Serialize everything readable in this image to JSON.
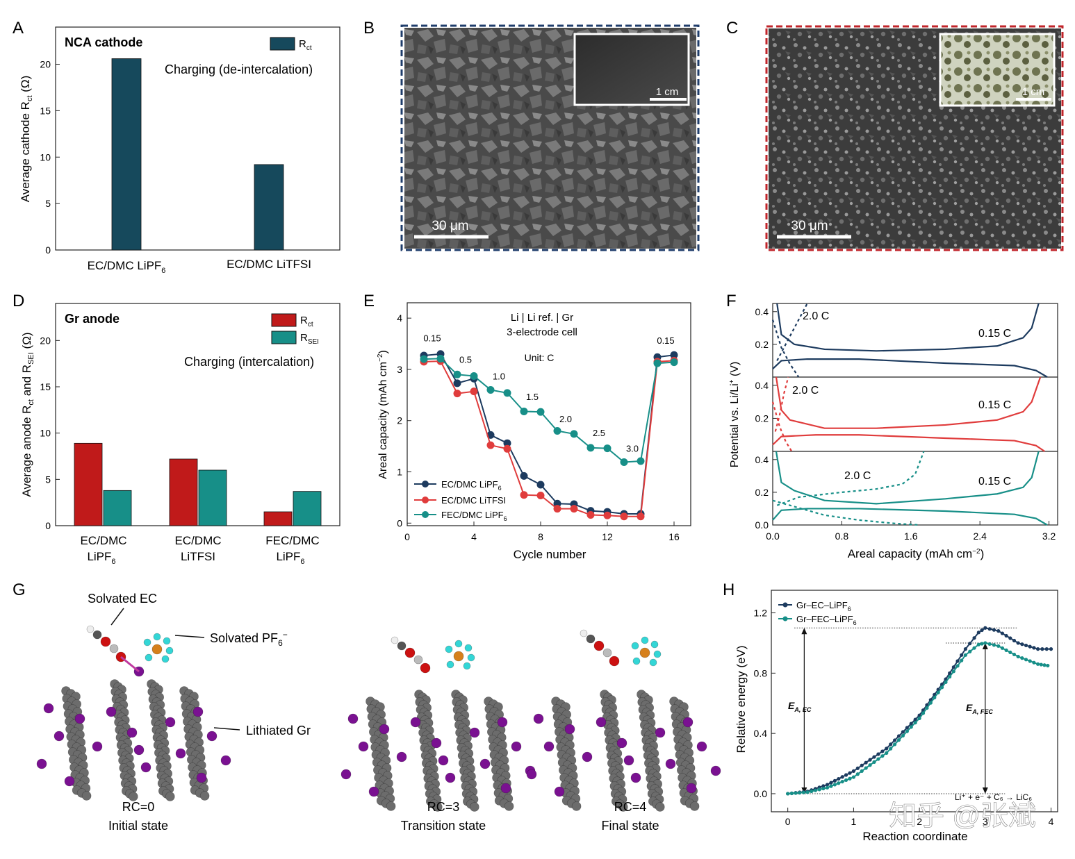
{
  "panel_letters": [
    "A",
    "B",
    "C",
    "D",
    "E",
    "F",
    "G",
    "H"
  ],
  "colors": {
    "navy": "#1d3b5f",
    "teal": "#178f88",
    "red": "#e03c3c",
    "darkteal": "#16495c",
    "darkred": "#c01a1a",
    "frame_b": "#1f3d6b",
    "frame_c": "#c0242a",
    "li": "#7a1191",
    "carbon": "#6c6c6c",
    "oxygen": "#cc1111",
    "fluorine": "#33d6d6",
    "phosphorus": "#d6801c"
  },
  "panelA": {
    "title": "NCA cathode",
    "legend": "R",
    "legend_sub": "ct",
    "note": "Charging (de-intercalation)",
    "ylabel_main": "Average cathode R",
    "ylabel_sub": "ct",
    "ylabel_unit": " (Ω)",
    "cat1_main": "EC/DMC LiPF",
    "cat1_sub": "6",
    "cat2": "EC/DMC LiTFSI"
  },
  "panelB": {
    "scale": "30 μm",
    "inset_scale": "1 cm"
  },
  "panelC": {
    "scale": "30 μm",
    "inset_scale": "1 cm"
  },
  "panelD": {
    "title": "Gr anode",
    "leg1": "R",
    "leg1_sub": "ct",
    "leg2": "R",
    "leg2_sub": "SEI",
    "note": "Charging (intercalation)",
    "ylabel_a": "Average anode R",
    "ylabel_a_sub": "ct",
    "ylabel_b": " and R",
    "ylabel_b_sub": "SEI",
    "ylabel_unit": " (Ω)",
    "cat_line1": [
      "EC/DMC",
      "EC/DMC",
      "FEC/DMC"
    ],
    "cat_line2_main": [
      "LiPF",
      "LiTFSI",
      "LiPF"
    ],
    "cat_line2_sub": [
      "6",
      "",
      "6"
    ]
  },
  "panelE": {
    "title1": "Li | Li ref. | Gr",
    "title2": "3-electrode cell",
    "unit": "Unit: C",
    "ylabel": "Areal capacity (mAh cm",
    "ylabel_sup": "−2",
    "ylabel_end": ")",
    "xlabel": "Cycle number",
    "rates": [
      "0.15",
      "0.5",
      "1.0",
      "1.5",
      "2.0",
      "2.5",
      "3.0",
      "0.15"
    ],
    "leg1_main": "EC/DMC LiPF",
    "leg1_sub": "6",
    "leg2": "EC/DMC LiTFSI",
    "leg3_main": "FEC/DMC LiPF",
    "leg3_sub": "6"
  },
  "panelF": {
    "ylabel": "Potential vs. Li/Li",
    "ylabel_sup": "+",
    "ylabel_end": " (V)",
    "xlabel": "Areal capacity (mAh cm",
    "xlabel_sup": "−2",
    "xlabel_end": ")",
    "fast": "2.0 C",
    "slow": "0.15 C"
  },
  "panelG": {
    "solv_ec": "Solvated EC",
    "solv_pf6": "Solvated PF",
    "solv_pf6_sub": "6",
    "solv_pf6_sup": "−",
    "lith_gr": "Lithiated Gr",
    "states": [
      {
        "rc": "RC=0",
        "name": "Initial state"
      },
      {
        "rc": "RC=3",
        "name": "Transition state"
      },
      {
        "rc": "RC=4",
        "name": "Final state"
      }
    ]
  },
  "panelH": {
    "leg1_main": "Gr–EC–LiPF",
    "leg1_sub": "6",
    "leg2_main": "Gr–FEC–LiPF",
    "leg2_sub": "6",
    "ylabel": "Relative energy (eV)",
    "xlabel": "Reaction coordinate",
    "ea_ec": "E",
    "ea_ec_sub": "A, EC",
    "ea_fec": "E",
    "ea_fec_sub": "A, FEC",
    "reaction": "Li⁺ + e⁻ + C₆ → LiC₆"
  },
  "watermark": "知乎 @张斌",
  "chart_data": [
    {
      "type": "bar",
      "panel": "A",
      "categories": [
        "EC/DMC LiPF6",
        "EC/DMC LiTFSI"
      ],
      "series": [
        {
          "name": "Rct",
          "values": [
            20.6,
            9.2
          ]
        }
      ],
      "ylabel": "Average cathode Rct (Ω)",
      "ylim": [
        0,
        24
      ],
      "yticks": [
        0,
        5,
        10,
        15,
        20
      ]
    },
    {
      "type": "bar",
      "panel": "D",
      "categories": [
        "EC/DMC LiPF6",
        "EC/DMC LiTFSI",
        "FEC/DMC LiPF6"
      ],
      "series": [
        {
          "name": "Rct",
          "values": [
            8.9,
            7.2,
            1.5
          ]
        },
        {
          "name": "RSEI",
          "values": [
            3.8,
            6.0,
            3.7
          ]
        }
      ],
      "ylabel": "Average anode Rct and RSEI (Ω)",
      "ylim": [
        0,
        24
      ],
      "yticks": [
        0,
        5,
        10,
        15,
        20
      ]
    },
    {
      "type": "line",
      "panel": "E",
      "x": [
        1,
        2,
        3,
        4,
        5,
        6,
        7,
        8,
        9,
        10,
        11,
        12,
        13,
        14,
        15,
        16
      ],
      "series": [
        {
          "name": "EC/DMC LiPF6",
          "values": [
            3.27,
            3.3,
            2.73,
            2.82,
            1.72,
            1.56,
            0.92,
            0.75,
            0.38,
            0.37,
            0.24,
            0.22,
            0.18,
            0.18,
            3.24,
            3.28
          ]
        },
        {
          "name": "EC/DMC LiTFSI",
          "values": [
            3.15,
            3.16,
            2.53,
            2.57,
            1.52,
            1.45,
            0.55,
            0.54,
            0.28,
            0.28,
            0.16,
            0.15,
            0.13,
            0.13,
            3.15,
            3.17
          ]
        },
        {
          "name": "FEC/DMC LiPF6",
          "values": [
            3.2,
            3.21,
            2.9,
            2.87,
            2.6,
            2.54,
            2.18,
            2.17,
            1.8,
            1.74,
            1.47,
            1.46,
            1.19,
            1.21,
            3.12,
            3.14
          ]
        }
      ],
      "xlabel": "Cycle number",
      "ylabel": "Areal capacity (mAh cm−2)",
      "xlim": [
        0,
        17
      ],
      "ylim": [
        -0.05,
        4.3
      ],
      "xticks": [
        0,
        4,
        8,
        12,
        16
      ],
      "yticks": [
        0,
        1,
        2,
        3,
        4
      ]
    },
    {
      "type": "line",
      "panel": "F",
      "xlabel": "Areal capacity (mAh cm−2)",
      "ylabel": "Potential vs. Li/Li+ (V)",
      "xlim": [
        0,
        3.3
      ],
      "ylim": [
        0,
        0.45
      ],
      "xticks": [
        0.0,
        0.8,
        1.6,
        2.4,
        3.2
      ],
      "yticks": [
        0.0,
        0.2,
        0.4
      ],
      "rows": [
        {
          "name": "EC/DMC LiPF6",
          "color": "navy",
          "slow_charge": [
            [
              0.05,
              0.45
            ],
            [
              0.1,
              0.26
            ],
            [
              0.25,
              0.2
            ],
            [
              0.6,
              0.17
            ],
            [
              1.2,
              0.16
            ],
            [
              2.0,
              0.17
            ],
            [
              2.6,
              0.19
            ],
            [
              2.9,
              0.24
            ],
            [
              3.0,
              0.3
            ],
            [
              3.08,
              0.45
            ]
          ],
          "slow_discharge": [
            [
              0.0,
              0.05
            ],
            [
              0.1,
              0.1
            ],
            [
              0.4,
              0.11
            ],
            [
              1.0,
              0.11
            ],
            [
              2.0,
              0.085
            ],
            [
              2.8,
              0.07
            ],
            [
              3.05,
              0.04
            ],
            [
              3.18,
              0.0
            ]
          ],
          "fast_charge": [
            [
              0.05,
              0.1
            ],
            [
              0.15,
              0.2
            ],
            [
              0.3,
              0.35
            ],
            [
              0.4,
              0.45
            ]
          ],
          "fast_discharge": [
            [
              0.0,
              0.35
            ],
            [
              0.1,
              0.18
            ],
            [
              0.2,
              0.08
            ],
            [
              0.3,
              0.0
            ]
          ]
        },
        {
          "name": "EC/DMC LiTFSI",
          "color": "red",
          "slow_charge": [
            [
              0.04,
              0.45
            ],
            [
              0.1,
              0.25
            ],
            [
              0.2,
              0.19
            ],
            [
              0.6,
              0.14
            ],
            [
              1.2,
              0.14
            ],
            [
              2.0,
              0.16
            ],
            [
              2.6,
              0.19
            ],
            [
              2.9,
              0.24
            ],
            [
              3.0,
              0.3
            ],
            [
              3.1,
              0.45
            ]
          ],
          "slow_discharge": [
            [
              0.0,
              0.04
            ],
            [
              0.1,
              0.09
            ],
            [
              0.5,
              0.1
            ],
            [
              1.0,
              0.1
            ],
            [
              2.0,
              0.08
            ],
            [
              2.8,
              0.065
            ],
            [
              3.05,
              0.035
            ],
            [
              3.15,
              0.0
            ]
          ],
          "fast_charge": [
            [
              0.03,
              0.12
            ],
            [
              0.08,
              0.22
            ],
            [
              0.13,
              0.35
            ],
            [
              0.18,
              0.45
            ]
          ],
          "fast_discharge": [
            [
              0.0,
              0.3
            ],
            [
              0.08,
              0.15
            ],
            [
              0.15,
              0.06
            ],
            [
              0.22,
              0.0
            ]
          ]
        },
        {
          "name": "FEC/DMC LiPF6",
          "color": "teal",
          "slow_charge": [
            [
              0.04,
              0.45
            ],
            [
              0.1,
              0.26
            ],
            [
              0.25,
              0.21
            ],
            [
              0.6,
              0.15
            ],
            [
              1.2,
              0.13
            ],
            [
              2.0,
              0.16
            ],
            [
              2.6,
              0.19
            ],
            [
              2.9,
              0.23
            ],
            [
              3.0,
              0.29
            ],
            [
              3.08,
              0.45
            ]
          ],
          "slow_discharge": [
            [
              0.0,
              0.03
            ],
            [
              0.1,
              0.09
            ],
            [
              0.4,
              0.1
            ],
            [
              1.0,
              0.1
            ],
            [
              2.0,
              0.085
            ],
            [
              2.8,
              0.065
            ],
            [
              3.05,
              0.04
            ],
            [
              3.18,
              0.0
            ]
          ],
          "fast_charge": [
            [
              0.05,
              0.12
            ],
            [
              0.3,
              0.17
            ],
            [
              0.8,
              0.2
            ],
            [
              1.2,
              0.22
            ],
            [
              1.5,
              0.25
            ],
            [
              1.65,
              0.31
            ],
            [
              1.75,
              0.45
            ]
          ],
          "fast_discharge": [
            [
              0.0,
              0.15
            ],
            [
              0.2,
              0.12
            ],
            [
              0.6,
              0.06
            ],
            [
              1.0,
              0.03
            ],
            [
              1.4,
              0.01
            ],
            [
              1.7,
              0.0
            ]
          ]
        }
      ]
    },
    {
      "type": "line",
      "panel": "H",
      "xlabel": "Reaction coordinate",
      "ylabel": "Relative energy (eV)",
      "xlim": [
        -0.25,
        4.1
      ],
      "ylim": [
        -0.12,
        1.35
      ],
      "xticks": [
        0,
        1,
        2,
        3,
        4
      ],
      "yticks": [
        0.0,
        0.4,
        0.8,
        1.2
      ],
      "series": [
        {
          "name": "Gr–EC–LiPF6",
          "points": [
            [
              0,
              0
            ],
            [
              0.3,
              0.015
            ],
            [
              0.6,
              0.06
            ],
            [
              1.0,
              0.15
            ],
            [
              1.5,
              0.3
            ],
            [
              2.0,
              0.52
            ],
            [
              2.4,
              0.76
            ],
            [
              2.7,
              0.96
            ],
            [
              2.9,
              1.07
            ],
            [
              3.0,
              1.1
            ],
            [
              3.2,
              1.08
            ],
            [
              3.5,
              1.0
            ],
            [
              3.8,
              0.96
            ],
            [
              4.0,
              0.96
            ]
          ]
        },
        {
          "name": "Gr–FEC–LiPF6",
          "points": [
            [
              0,
              0
            ],
            [
              0.3,
              0.01
            ],
            [
              0.6,
              0.04
            ],
            [
              1.0,
              0.11
            ],
            [
              1.5,
              0.27
            ],
            [
              2.0,
              0.5
            ],
            [
              2.4,
              0.74
            ],
            [
              2.7,
              0.92
            ],
            [
              2.9,
              0.99
            ],
            [
              3.0,
              1.0
            ],
            [
              3.2,
              0.98
            ],
            [
              3.5,
              0.91
            ],
            [
              3.8,
              0.86
            ],
            [
              3.95,
              0.85
            ]
          ]
        }
      ],
      "ea_ec": 1.1,
      "ea_fec": 1.0
    }
  ]
}
